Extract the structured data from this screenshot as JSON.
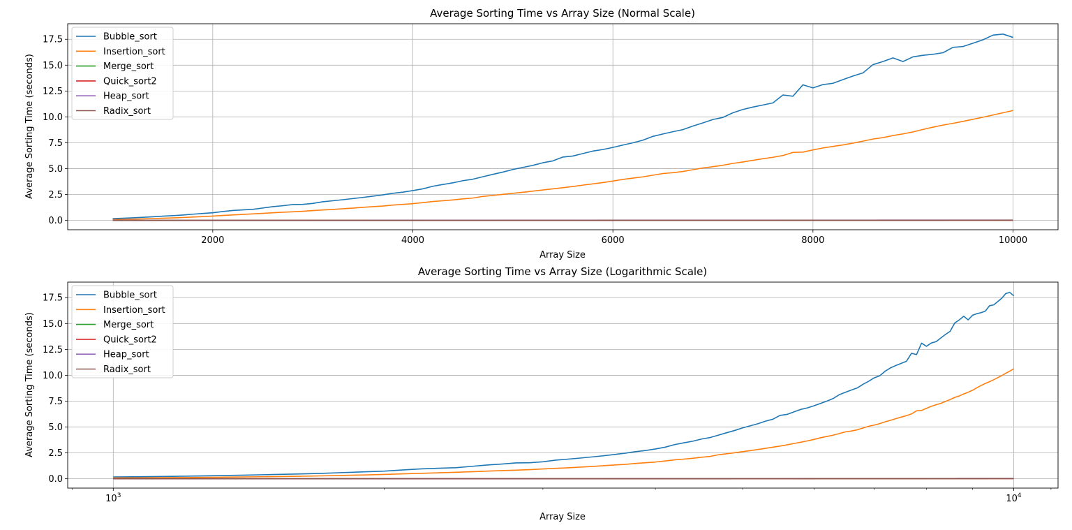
{
  "colors": {
    "Bubble_sort": "#1f77b4",
    "Insertion_sort": "#ff7f0e",
    "Merge_sort": "#2ca02c",
    "Quick_sort2": "#d62728",
    "Heap_sort": "#9467bd",
    "Radix_sort": "#8c564b",
    "grid": "#b0b0b0",
    "axes": "#000000"
  },
  "chart_data": [
    {
      "type": "line",
      "title": "Average Sorting Time vs Array Size (Normal Scale)",
      "xlabel": "Array Size",
      "ylabel": "Average Sorting Time (seconds)",
      "xscale": "linear",
      "xlim": [
        550,
        10450
      ],
      "ylim": [
        -0.9,
        19.0
      ],
      "xticks": [
        2000,
        4000,
        6000,
        8000,
        10000
      ],
      "xtick_labels": [
        "2000",
        "4000",
        "6000",
        "8000",
        "10000"
      ],
      "yticks": [
        0,
        2.5,
        5,
        7.5,
        10,
        12.5,
        15,
        17.5
      ],
      "ytick_labels": [
        "0.0",
        "2.5",
        "5.0",
        "7.5",
        "10.0",
        "12.5",
        "15.0",
        "17.5"
      ],
      "grid": true,
      "legend": "upper left"
    },
    {
      "type": "line",
      "title": "Average Sorting Time vs Array Size (Logarithmic Scale)",
      "xlabel": "Array Size",
      "ylabel": "Average Sorting Time (seconds)",
      "xscale": "log",
      "xlim": [
        890,
        11200
      ],
      "ylim": [
        -0.9,
        19.0
      ],
      "xticks": [
        1000,
        10000
      ],
      "xtick_labels": [
        "10^3",
        "10^4"
      ],
      "minor_xticks": [
        900,
        2000,
        3000,
        4000,
        5000,
        6000,
        7000,
        8000,
        9000,
        11000
      ],
      "yticks": [
        0,
        2.5,
        5,
        7.5,
        10,
        12.5,
        15,
        17.5
      ],
      "ytick_labels": [
        "0.0",
        "2.5",
        "5.0",
        "7.5",
        "10.0",
        "12.5",
        "15.0",
        "17.5"
      ],
      "grid": true,
      "legend": "upper left"
    }
  ],
  "series_data": {
    "x": [
      1000,
      1100,
      1200,
      1300,
      1400,
      1500,
      1600,
      1700,
      1800,
      1900,
      2000,
      2100,
      2200,
      2300,
      2400,
      2500,
      2600,
      2700,
      2800,
      2900,
      3000,
      3100,
      3200,
      3300,
      3400,
      3500,
      3600,
      3700,
      3800,
      3900,
      4000,
      4100,
      4200,
      4300,
      4400,
      4500,
      4600,
      4700,
      4800,
      4900,
      5000,
      5100,
      5200,
      5300,
      5400,
      5500,
      5600,
      5700,
      5800,
      5900,
      6000,
      6100,
      6200,
      6300,
      6400,
      6500,
      6600,
      6700,
      6800,
      6900,
      7000,
      7100,
      7200,
      7300,
      7400,
      7500,
      7600,
      7700,
      7800,
      7900,
      8000,
      8100,
      8200,
      8300,
      8400,
      8500,
      8600,
      8700,
      8800,
      8900,
      9000,
      9100,
      9200,
      9300,
      9400,
      9500,
      9600,
      9700,
      9800,
      9900,
      10000
    ],
    "series": [
      {
        "name": "Bubble_sort",
        "values": [
          0.18,
          0.21,
          0.25,
          0.3,
          0.35,
          0.41,
          0.46,
          0.52,
          0.6,
          0.67,
          0.74,
          0.86,
          0.96,
          1.02,
          1.07,
          1.2,
          1.33,
          1.42,
          1.53,
          1.55,
          1.64,
          1.8,
          1.9,
          2.0,
          2.11,
          2.22,
          2.34,
          2.47,
          2.62,
          2.73,
          2.88,
          3.05,
          3.3,
          3.47,
          3.63,
          3.84,
          3.98,
          4.22,
          4.45,
          4.67,
          4.92,
          5.12,
          5.32,
          5.57,
          5.75,
          6.12,
          6.22,
          6.46,
          6.7,
          6.85,
          7.05,
          7.28,
          7.5,
          7.75,
          8.12,
          8.35,
          8.57,
          8.77,
          9.12,
          9.42,
          9.75,
          9.95,
          10.4,
          10.72,
          10.95,
          11.15,
          11.35,
          12.12,
          12.0,
          13.1,
          12.8,
          13.12,
          13.25,
          13.6,
          13.95,
          14.25,
          15.05,
          15.35,
          15.7,
          15.35,
          15.8,
          15.95,
          16.05,
          16.2,
          16.72,
          16.8,
          17.12,
          17.45,
          17.9,
          18.0,
          17.68
        ]
      },
      {
        "name": "Insertion_sort",
        "values": [
          0.08,
          0.1,
          0.12,
          0.15,
          0.18,
          0.21,
          0.24,
          0.28,
          0.33,
          0.37,
          0.42,
          0.48,
          0.53,
          0.58,
          0.63,
          0.68,
          0.74,
          0.79,
          0.83,
          0.88,
          0.95,
          1.01,
          1.06,
          1.13,
          1.19,
          1.26,
          1.33,
          1.39,
          1.48,
          1.55,
          1.62,
          1.72,
          1.83,
          1.9,
          1.98,
          2.08,
          2.16,
          2.32,
          2.42,
          2.52,
          2.62,
          2.72,
          2.83,
          2.94,
          3.05,
          3.16,
          3.28,
          3.41,
          3.53,
          3.66,
          3.8,
          3.96,
          4.09,
          4.21,
          4.37,
          4.53,
          4.61,
          4.73,
          4.9,
          5.07,
          5.19,
          5.33,
          5.51,
          5.65,
          5.81,
          5.96,
          6.1,
          6.27,
          6.57,
          6.6,
          6.81,
          7.0,
          7.15,
          7.29,
          7.47,
          7.66,
          7.86,
          8.0,
          8.2,
          8.36,
          8.55,
          8.79,
          9.01,
          9.21,
          9.38,
          9.57,
          9.77,
          9.97,
          10.19,
          10.4,
          10.62
        ]
      },
      {
        "name": "Merge_sort",
        "values": [
          0.002,
          0.002,
          0.002,
          0.003,
          0.003,
          0.003,
          0.003,
          0.004,
          0.004,
          0.004,
          0.004,
          0.005,
          0.005,
          0.005,
          0.005,
          0.006,
          0.006,
          0.006,
          0.006,
          0.007,
          0.007,
          0.007,
          0.007,
          0.008,
          0.008,
          0.008,
          0.008,
          0.009,
          0.009,
          0.009,
          0.009,
          0.01,
          0.01,
          0.01,
          0.01,
          0.011,
          0.011,
          0.011,
          0.011,
          0.012,
          0.012,
          0.012,
          0.012,
          0.013,
          0.013,
          0.013,
          0.013,
          0.014,
          0.014,
          0.014,
          0.014,
          0.015,
          0.015,
          0.015,
          0.015,
          0.016,
          0.016,
          0.016,
          0.016,
          0.017,
          0.017,
          0.017,
          0.017,
          0.018,
          0.018,
          0.018,
          0.018,
          0.019,
          0.019,
          0.019,
          0.019,
          0.02,
          0.02,
          0.02,
          0.02,
          0.021,
          0.021,
          0.021,
          0.021,
          0.022,
          0.022,
          0.022,
          0.022,
          0.023,
          0.023,
          0.023,
          0.023,
          0.024,
          0.024,
          0.024,
          0.024
        ]
      },
      {
        "name": "Quick_sort2",
        "values": [
          0.001,
          0.001,
          0.001,
          0.002,
          0.002,
          0.002,
          0.002,
          0.002,
          0.002,
          0.003,
          0.003,
          0.003,
          0.003,
          0.003,
          0.003,
          0.004,
          0.004,
          0.004,
          0.004,
          0.004,
          0.004,
          0.005,
          0.005,
          0.005,
          0.005,
          0.005,
          0.005,
          0.006,
          0.006,
          0.006,
          0.006,
          0.006,
          0.006,
          0.007,
          0.007,
          0.007,
          0.007,
          0.007,
          0.007,
          0.008,
          0.008,
          0.008,
          0.008,
          0.008,
          0.008,
          0.009,
          0.009,
          0.009,
          0.009,
          0.009,
          0.009,
          0.01,
          0.01,
          0.01,
          0.01,
          0.01,
          0.01,
          0.011,
          0.011,
          0.011,
          0.011,
          0.011,
          0.011,
          0.012,
          0.012,
          0.012,
          0.012,
          0.012,
          0.012,
          0.013,
          0.013,
          0.013,
          0.013,
          0.013,
          0.013,
          0.014,
          0.014,
          0.014,
          0.014,
          0.014,
          0.014,
          0.015,
          0.015,
          0.015,
          0.015,
          0.015,
          0.015,
          0.016,
          0.016,
          0.016,
          0.016
        ]
      },
      {
        "name": "Heap_sort",
        "values": [
          0.003,
          0.003,
          0.004,
          0.004,
          0.004,
          0.005,
          0.005,
          0.005,
          0.006,
          0.006,
          0.006,
          0.007,
          0.007,
          0.007,
          0.008,
          0.008,
          0.008,
          0.009,
          0.009,
          0.009,
          0.01,
          0.01,
          0.01,
          0.011,
          0.011,
          0.011,
          0.012,
          0.012,
          0.012,
          0.013,
          0.013,
          0.013,
          0.014,
          0.014,
          0.014,
          0.015,
          0.015,
          0.015,
          0.016,
          0.016,
          0.016,
          0.017,
          0.017,
          0.017,
          0.018,
          0.018,
          0.018,
          0.019,
          0.019,
          0.019,
          0.02,
          0.02,
          0.02,
          0.021,
          0.021,
          0.021,
          0.022,
          0.022,
          0.022,
          0.023,
          0.023,
          0.023,
          0.024,
          0.024,
          0.024,
          0.025,
          0.025,
          0.025,
          0.026,
          0.026,
          0.026,
          0.027,
          0.027,
          0.027,
          0.028,
          0.028,
          0.028,
          0.029,
          0.029,
          0.029,
          0.03,
          0.03,
          0.03,
          0.031,
          0.031,
          0.031,
          0.032,
          0.032,
          0.032,
          0.033,
          0.033
        ]
      },
      {
        "name": "Radix_sort",
        "values": [
          0.002,
          0.002,
          0.002,
          0.002,
          0.003,
          0.003,
          0.003,
          0.003,
          0.003,
          0.004,
          0.004,
          0.004,
          0.004,
          0.004,
          0.005,
          0.005,
          0.005,
          0.005,
          0.005,
          0.006,
          0.006,
          0.006,
          0.006,
          0.006,
          0.007,
          0.007,
          0.007,
          0.007,
          0.007,
          0.008,
          0.008,
          0.008,
          0.008,
          0.008,
          0.009,
          0.009,
          0.009,
          0.009,
          0.009,
          0.01,
          0.01,
          0.01,
          0.01,
          0.01,
          0.011,
          0.011,
          0.011,
          0.011,
          0.011,
          0.012,
          0.012,
          0.012,
          0.012,
          0.012,
          0.013,
          0.013,
          0.013,
          0.013,
          0.013,
          0.014,
          0.014,
          0.014,
          0.014,
          0.014,
          0.015,
          0.015,
          0.015,
          0.015,
          0.015,
          0.016,
          0.016,
          0.016,
          0.016,
          0.016,
          0.017,
          0.017,
          0.017,
          0.017,
          0.017,
          0.018,
          0.018,
          0.018,
          0.018,
          0.018,
          0.019,
          0.019,
          0.019,
          0.019,
          0.019,
          0.02,
          0.02
        ]
      }
    ]
  }
}
